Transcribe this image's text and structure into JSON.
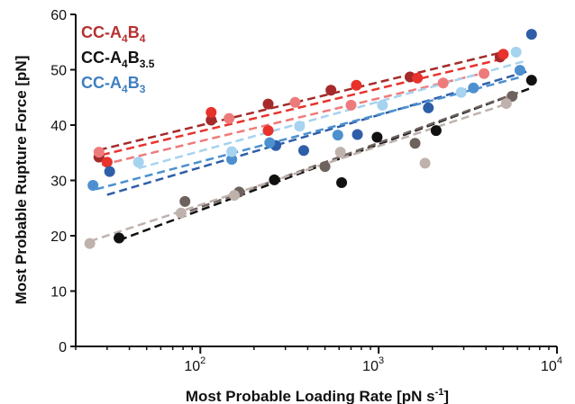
{
  "chart_data": {
    "type": "scatter",
    "xlabel": "Most Probable Loading Rate [pN s",
    "xlabel_sup": "-1",
    "xlabel_end": "]",
    "ylabel": "Most Probable Rupture Force [pN]",
    "x_scale": "log",
    "xlim": [
      20,
      10000
    ],
    "ylim": [
      0,
      60
    ],
    "y_ticks": [
      "0",
      "10",
      "20",
      "30",
      "40",
      "50",
      "60"
    ],
    "x_ticks": [
      {
        "base": "10",
        "exp": "2",
        "value": 100
      },
      {
        "base": "10",
        "exp": "3",
        "value": 1000
      },
      {
        "base": "10",
        "exp": "4",
        "value": 10000
      }
    ],
    "grid": false,
    "legend_position": "top-left",
    "legend": [
      {
        "main": "CC-A",
        "sub1": "4",
        "mid": "B",
        "sub2": "4",
        "color": "#b83030"
      },
      {
        "main": "CC-A",
        "sub1": "4",
        "mid": "B",
        "sub2": "3.5",
        "color": "#111111"
      },
      {
        "main": "CC-A",
        "sub1": "4",
        "mid": "B",
        "sub2": "3",
        "color": "#3f7fc1"
      }
    ],
    "series": [
      {
        "color": "#a52a2a",
        "fit": {
          "x1": 27,
          "y1": 35.5,
          "x2": 5000,
          "y2": 53.2
        },
        "points": [
          [
            27,
            34.2
          ],
          [
            115,
            40.9
          ],
          [
            240,
            43.8
          ],
          [
            540,
            46.3
          ],
          [
            1500,
            48.7
          ],
          [
            4800,
            52.3
          ]
        ]
      },
      {
        "color": "#e8322c",
        "fit": {
          "x1": 28,
          "y1": 34.6,
          "x2": 5000,
          "y2": 52.0
        },
        "points": [
          [
            30,
            33.3
          ],
          [
            115,
            42.3
          ],
          [
            240,
            39.0
          ],
          [
            750,
            47.2
          ],
          [
            1650,
            48.5
          ],
          [
            5000,
            52.8
          ]
        ]
      },
      {
        "color": "#ee7b7b",
        "fit": {
          "x1": 28,
          "y1": 32.8,
          "x2": 4000,
          "y2": 49.5
        },
        "points": [
          [
            27,
            35.1
          ],
          [
            145,
            41.2
          ],
          [
            340,
            44.1
          ],
          [
            700,
            43.6
          ],
          [
            2300,
            47.6
          ],
          [
            3900,
            49.3
          ]
        ]
      },
      {
        "color": "#111111",
        "fit": {
          "x1": 35,
          "y1": 19.2,
          "x2": 7300,
          "y2": 46.8
        },
        "points": [
          [
            35,
            19.6
          ],
          [
            260,
            30.1
          ],
          [
            620,
            29.6
          ],
          [
            980,
            37.8
          ],
          [
            2100,
            39.0
          ],
          [
            7200,
            48.1
          ]
        ]
      },
      {
        "color": "#6e625e",
        "fit": {
          "x1": 75,
          "y1": 23.7,
          "x2": 6200,
          "y2": 46.0
        },
        "points": [
          [
            82,
            26.2
          ],
          [
            165,
            27.9
          ],
          [
            500,
            32.5
          ],
          [
            1600,
            36.7
          ],
          [
            5600,
            45.2
          ]
        ]
      },
      {
        "color": "#bfb2ad",
        "fit": {
          "x1": 24,
          "y1": 19.0,
          "x2": 5200,
          "y2": 43.8
        },
        "points": [
          [
            24,
            18.6
          ],
          [
            78,
            24.1
          ],
          [
            155,
            27.3
          ],
          [
            610,
            35.1
          ],
          [
            1820,
            33.1
          ],
          [
            5200,
            43.9
          ]
        ]
      },
      {
        "color": "#2f5ea8",
        "fit": {
          "x1": 30,
          "y1": 27.4,
          "x2": 7000,
          "y2": 49.8
        },
        "points": [
          [
            31,
            31.6
          ],
          [
            265,
            36.3
          ],
          [
            380,
            35.4
          ],
          [
            760,
            38.3
          ],
          [
            1900,
            43.1
          ],
          [
            7200,
            56.4
          ]
        ]
      },
      {
        "color": "#4c90cf",
        "fit": {
          "x1": 26,
          "y1": 28.4,
          "x2": 6300,
          "y2": 48.7
        },
        "points": [
          [
            25,
            29.1
          ],
          [
            150,
            33.8
          ],
          [
            245,
            36.8
          ],
          [
            590,
            38.2
          ],
          [
            3400,
            46.7
          ],
          [
            6200,
            49.9
          ]
        ]
      },
      {
        "color": "#a6d3ef",
        "fit": {
          "x1": 45,
          "y1": 32.2,
          "x2": 6500,
          "y2": 51.5
        },
        "points": [
          [
            45,
            33.3
          ],
          [
            150,
            35.2
          ],
          [
            360,
            39.8
          ],
          [
            1050,
            43.6
          ],
          [
            2900,
            45.9
          ],
          [
            5900,
            53.2
          ]
        ]
      }
    ]
  }
}
